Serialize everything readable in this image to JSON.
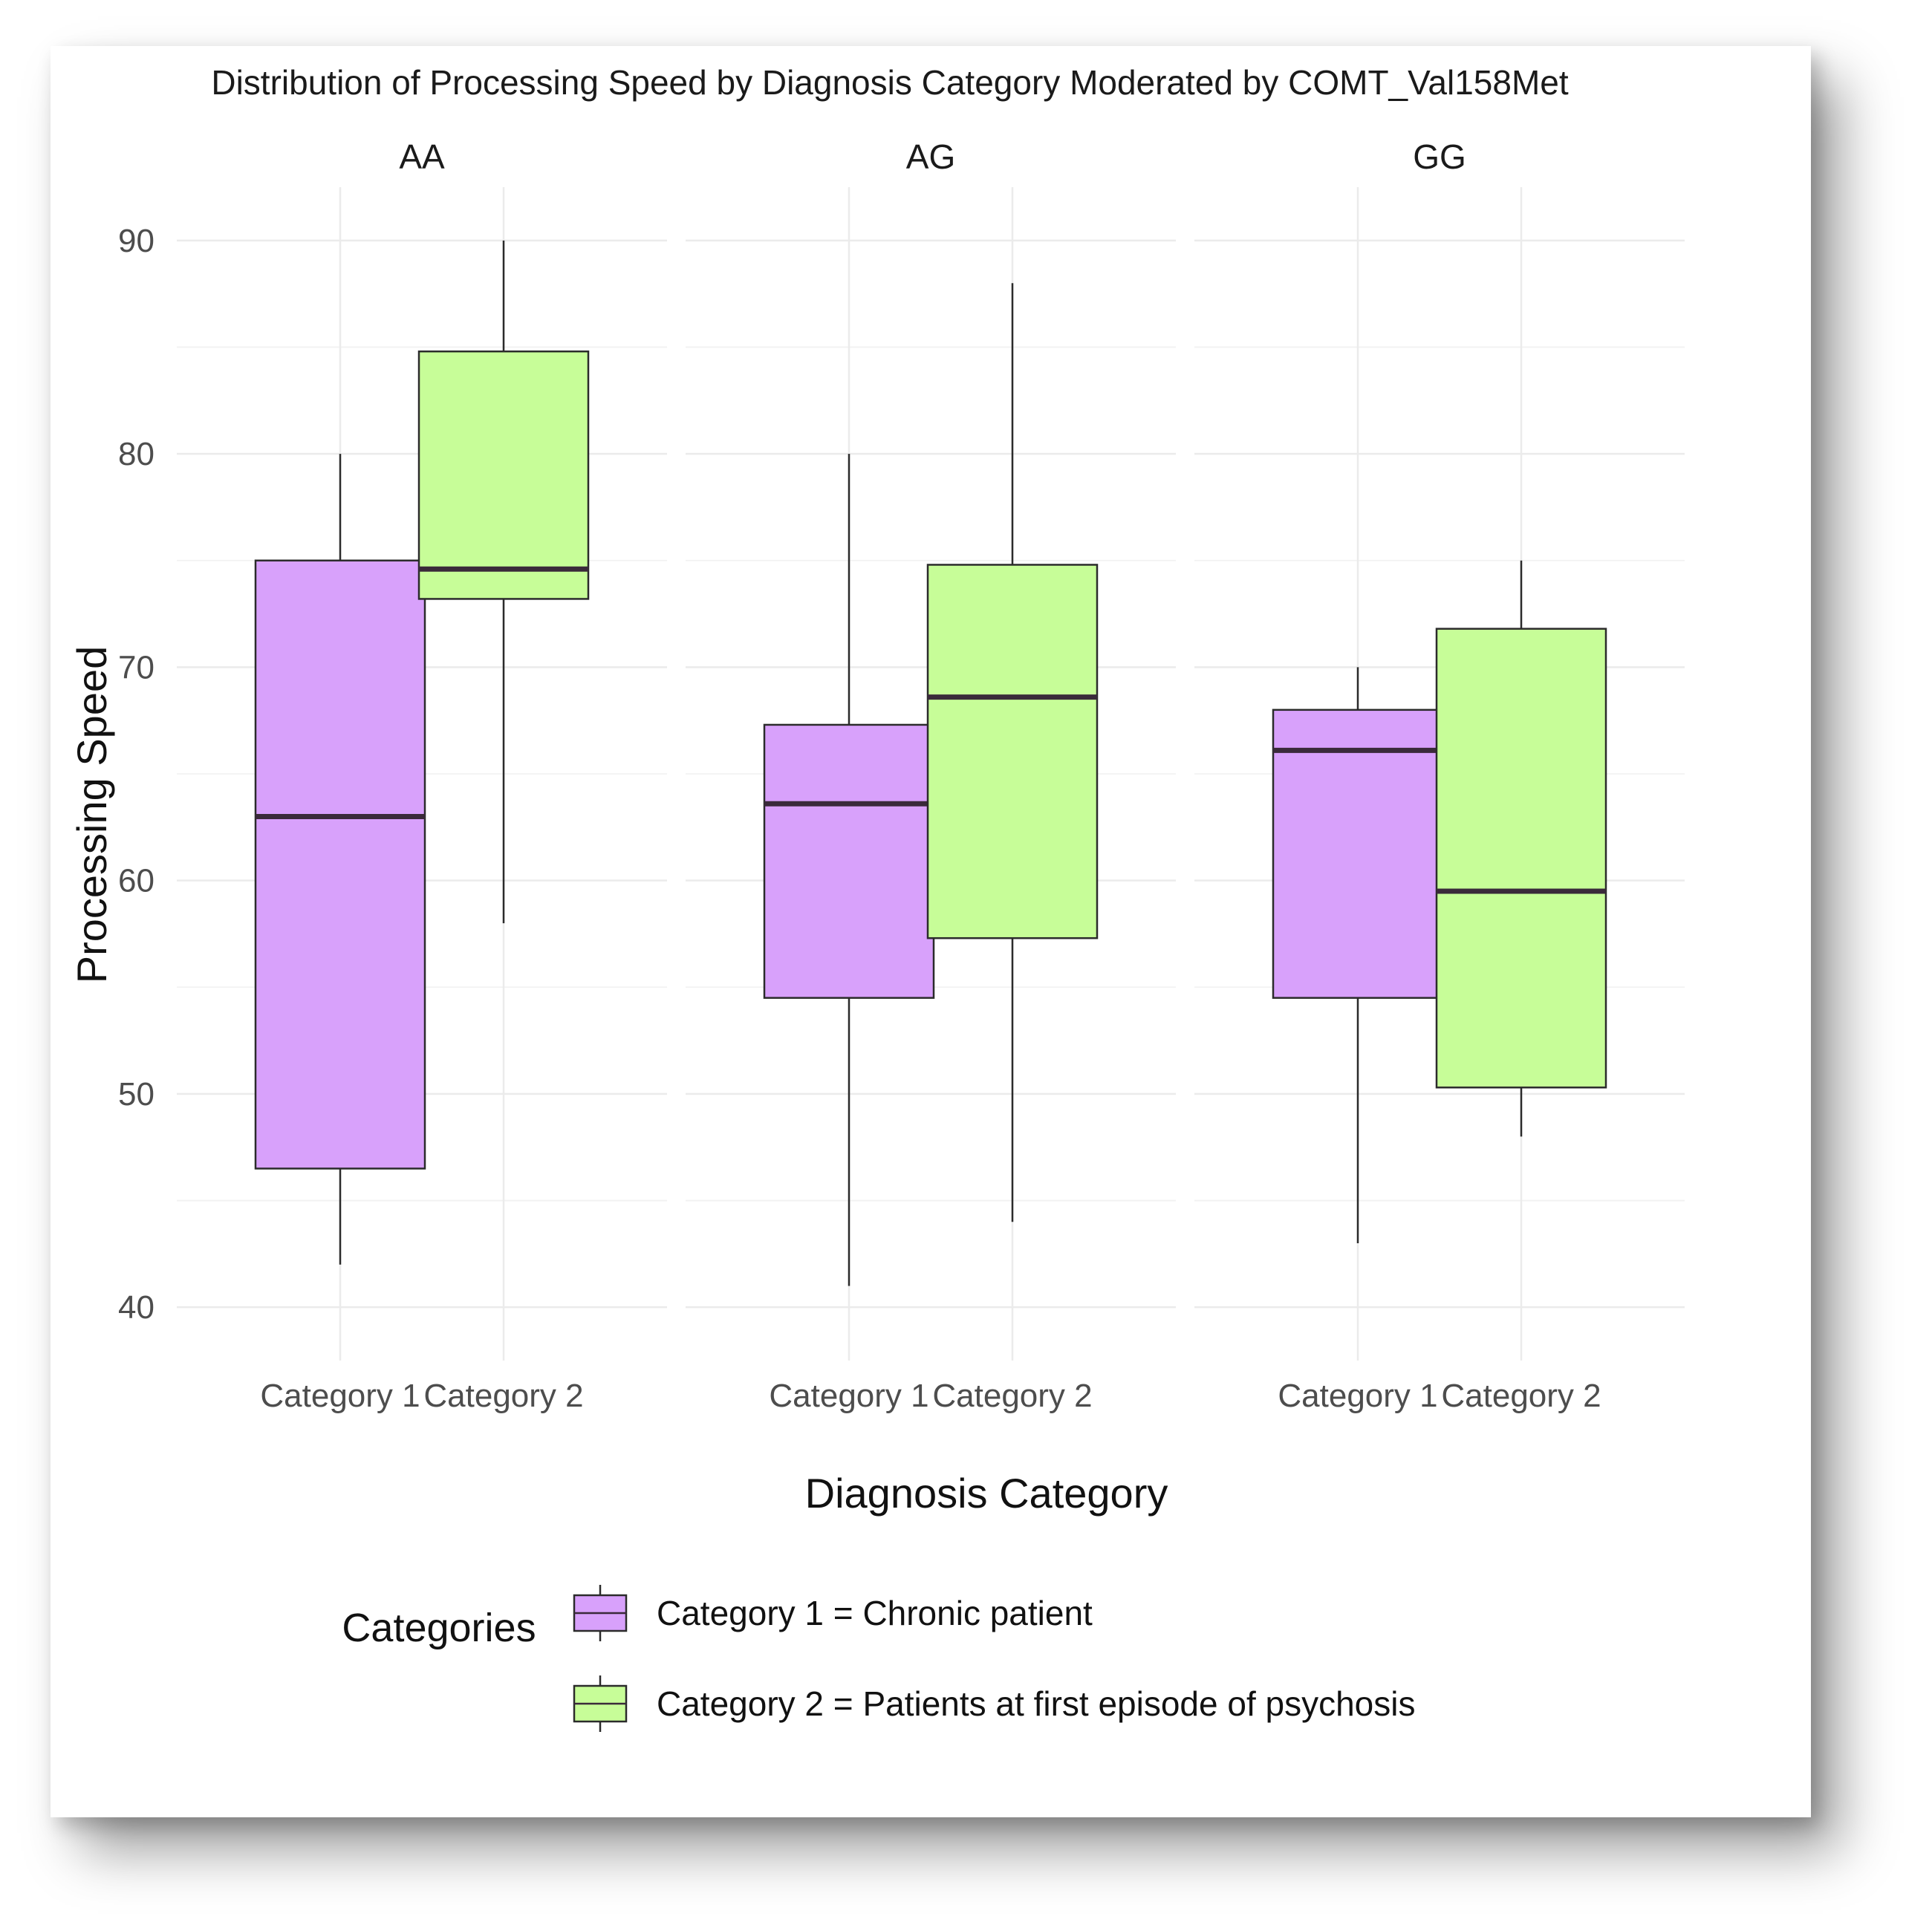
{
  "chart_data": {
    "type": "boxplot",
    "title": "Distribution of Processing Speed by Diagnosis Category Moderated by COMT_Val158Met",
    "xlabel": "Diagnosis Category",
    "ylabel": "Processing Speed",
    "ylim": [
      37.5,
      92.5
    ],
    "yticks": [
      40,
      50,
      60,
      70,
      80,
      90
    ],
    "categories": [
      "Category 1",
      "Category 2"
    ],
    "facets": [
      {
        "label": "AA",
        "boxes": [
          {
            "category": "Category 1",
            "min": 42,
            "q1": 46.5,
            "median": 63,
            "q3": 75,
            "max": 80
          },
          {
            "category": "Category 2",
            "min": 58,
            "q1": 73.2,
            "median": 74.6,
            "q3": 84.8,
            "max": 90
          }
        ]
      },
      {
        "label": "AG",
        "boxes": [
          {
            "category": "Category 1",
            "min": 41,
            "q1": 54.5,
            "median": 63.6,
            "q3": 67.3,
            "max": 80
          },
          {
            "category": "Category 2",
            "min": 44,
            "q1": 57.3,
            "median": 68.6,
            "q3": 74.8,
            "max": 88
          }
        ]
      },
      {
        "label": "GG",
        "boxes": [
          {
            "category": "Category 1",
            "min": 43,
            "q1": 54.5,
            "median": 66.1,
            "q3": 68,
            "max": 70
          },
          {
            "category": "Category 2",
            "min": 48,
            "q1": 50.3,
            "median": 59.5,
            "q3": 71.8,
            "max": 75
          }
        ]
      }
    ],
    "legend": {
      "title": "Categories",
      "position": "bottom",
      "entries": [
        {
          "label": "Category 1 = Chronic patient",
          "color": "#d8a1fb"
        },
        {
          "label": "Category 2 = Patients at first episode of psychosis",
          "color": "#c7fd98"
        }
      ]
    },
    "colors": {
      "category1": "#d8a1fb",
      "category2": "#c7fd98",
      "median": "#3a2a3a",
      "outline": "#2b2b2b",
      "grid": "#ebebeb"
    }
  }
}
